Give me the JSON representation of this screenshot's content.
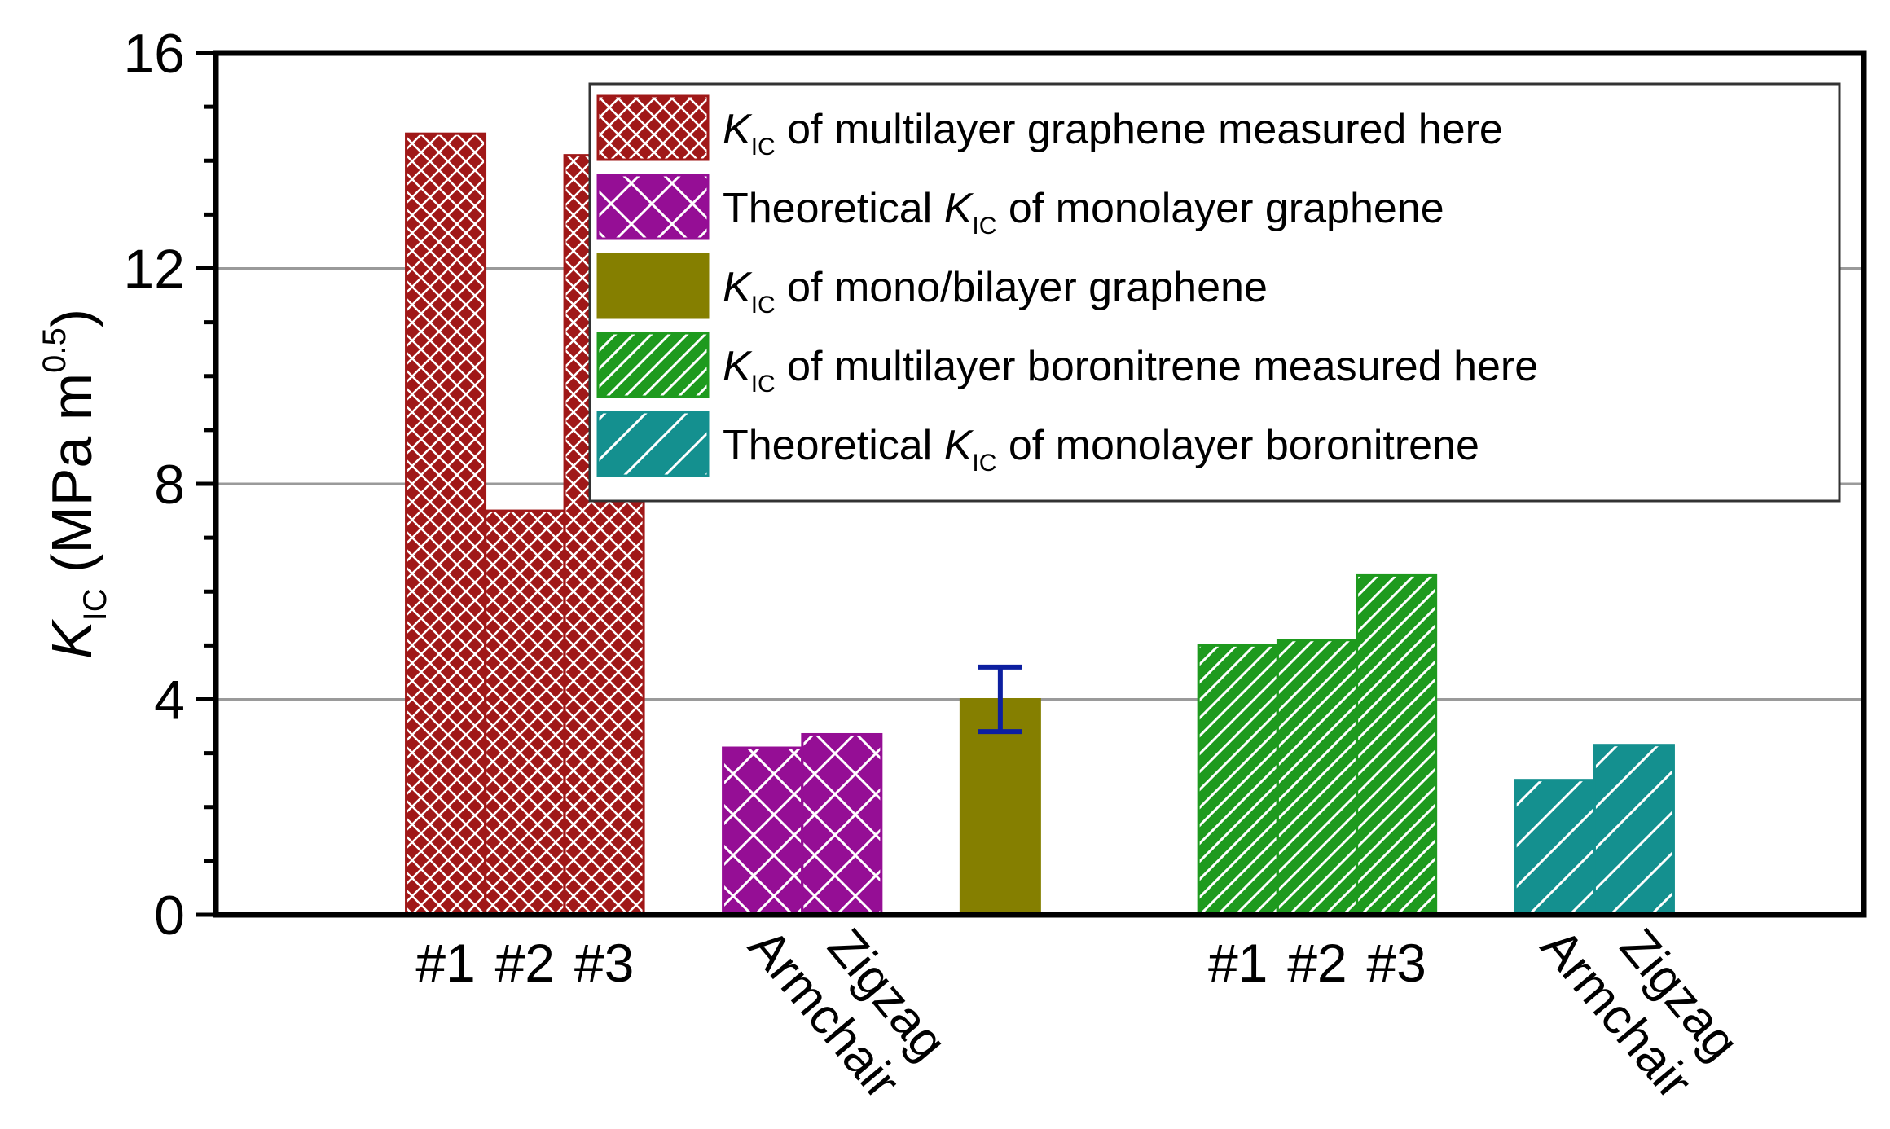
{
  "chart_data": {
    "type": "bar",
    "ylabel": {
      "main": "K",
      "sub": "IC",
      "unit_open": " (MPa m",
      "unit_exp": "0.5",
      "unit_close": ")"
    },
    "ylim": [
      0,
      16
    ],
    "yticks": [
      0,
      4,
      8,
      12,
      16
    ],
    "y_minor_step": 1,
    "grid": {
      "horizontal": true,
      "lines_at": [
        4,
        8,
        12
      ]
    },
    "legend_position": "top-right",
    "x_slot_range": [
      -2.9,
      17.9
    ],
    "series": [
      {
        "name_prefix": "",
        "name_k": "K",
        "name_sub": "IC",
        "name_suffix": " of multilayer graphene measured here",
        "fill": "#a01818",
        "pattern": "crosshatch-fine",
        "bars": [
          {
            "label": "#1",
            "value": 14.5,
            "slot": 0,
            "label_rotated": false
          },
          {
            "label": "#2",
            "value": 7.5,
            "slot": 1,
            "label_rotated": false
          },
          {
            "label": "#3",
            "value": 14.1,
            "slot": 2,
            "label_rotated": false
          }
        ]
      },
      {
        "name_prefix": "Theoretical ",
        "name_k": "K",
        "name_sub": "IC",
        "name_suffix": " of monolayer graphene",
        "fill": "#950e95",
        "pattern": "crosshatch-coarse",
        "bars": [
          {
            "label": "Armchair",
            "value": 3.1,
            "slot": 4,
            "label_rotated": true
          },
          {
            "label": "Zigzag",
            "value": 3.35,
            "slot": 5,
            "label_rotated": true
          }
        ]
      },
      {
        "name_prefix": "",
        "name_k": "K",
        "name_sub": "IC",
        "name_suffix": " of mono/bilayer graphene",
        "fill": "#857f00",
        "pattern": "solid",
        "bars": [
          {
            "label": "",
            "value": 4.0,
            "slot": 7,
            "label_rotated": false,
            "error": [
              3.4,
              4.6
            ]
          }
        ]
      },
      {
        "name_prefix": "",
        "name_k": "K",
        "name_sub": "IC",
        "name_suffix": " of multilayer boronitrene measured here",
        "fill": "#1e9a1e",
        "pattern": "diagonal-fine",
        "bars": [
          {
            "label": "#1",
            "value": 5.0,
            "slot": 10,
            "label_rotated": false
          },
          {
            "label": "#2",
            "value": 5.1,
            "slot": 11,
            "label_rotated": false
          },
          {
            "label": "#3",
            "value": 6.3,
            "slot": 12,
            "label_rotated": false
          }
        ]
      },
      {
        "name_prefix": "Theoretical ",
        "name_k": "K",
        "name_sub": "IC",
        "name_suffix": " of monolayer boronitrene",
        "fill": "#14908f",
        "pattern": "diagonal-coarse",
        "bars": [
          {
            "label": "Armchair",
            "value": 2.5,
            "slot": 14,
            "label_rotated": true
          },
          {
            "label": "Zigzag",
            "value": 3.15,
            "slot": 15,
            "label_rotated": true
          }
        ]
      }
    ],
    "error_bar_color": "#0d1fa0"
  }
}
